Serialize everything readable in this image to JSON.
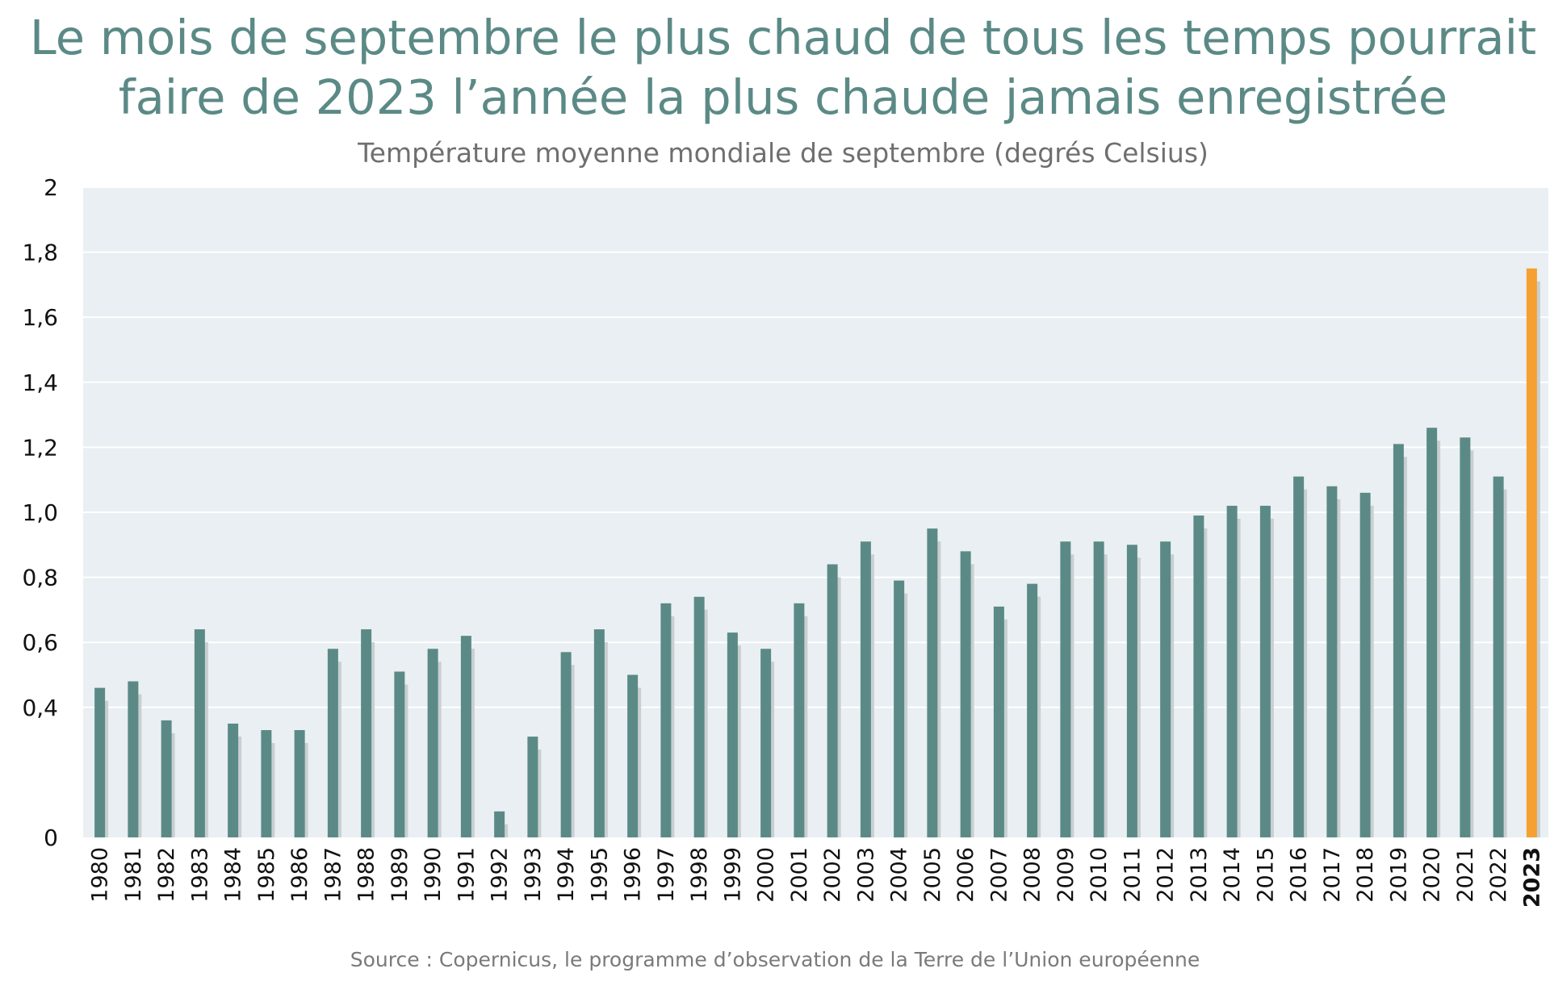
{
  "title_line1": "Le mois de septembre le plus chaud de tous les temps pourrait",
  "title_line2": "faire de 2023 l’année la plus chaude jamais enregistrée",
  "subtitle": "Température moyenne mondiale de septembre (degrés Celsius)",
  "source": "Source : Copernicus, le programme d’observation de la Terre de l’Union européenne",
  "colors": {
    "title": "#5b8a86",
    "bar": "#5b8a86",
    "highlight": "#f5a031",
    "plot_bg": "#e9eff2",
    "gridline": "#ffffff",
    "shadow": "#c9cfd1"
  },
  "chart_data": {
    "type": "bar",
    "title": "Le mois de septembre le plus chaud de tous les temps pourrait faire de 2023 l’année la plus chaude jamais enregistrée",
    "subtitle": "Température moyenne mondiale de septembre (degrés Celsius)",
    "xlabel": "",
    "ylabel": "",
    "ylim": [
      0,
      2
    ],
    "yticks": [
      "0",
      "0,4",
      "0,6",
      "0,8",
      "1,0",
      "1,2",
      "1,4",
      "1,6",
      "1,8",
      "2"
    ],
    "ytick_values": [
      0,
      0.4,
      0.6,
      0.8,
      1.0,
      1.2,
      1.4,
      1.6,
      1.8,
      2
    ],
    "grid": true,
    "highlight_category": "2023",
    "categories": [
      "1980",
      "1981",
      "1982",
      "1983",
      "1984",
      "1985",
      "1986",
      "1987",
      "1988",
      "1989",
      "1990",
      "1991",
      "1992",
      "1993",
      "1994",
      "1995",
      "1996",
      "1997",
      "1998",
      "1999",
      "2000",
      "2001",
      "2002",
      "2003",
      "2004",
      "2005",
      "2006",
      "2007",
      "2008",
      "2009",
      "2010",
      "2011",
      "2012",
      "2013",
      "2014",
      "2015",
      "2016",
      "2017",
      "2018",
      "2019",
      "2020",
      "2021",
      "2022",
      "2023"
    ],
    "values": [
      0.46,
      0.48,
      0.36,
      0.64,
      0.35,
      0.33,
      0.33,
      0.58,
      0.64,
      0.51,
      0.58,
      0.62,
      0.08,
      0.31,
      0.57,
      0.64,
      0.5,
      0.72,
      0.74,
      0.63,
      0.58,
      0.72,
      0.84,
      0.91,
      0.79,
      0.95,
      0.88,
      0.71,
      0.78,
      0.91,
      0.91,
      0.9,
      0.91,
      0.99,
      1.02,
      1.02,
      1.11,
      1.08,
      1.06,
      1.21,
      1.26,
      1.23,
      1.11,
      1.75
    ]
  }
}
